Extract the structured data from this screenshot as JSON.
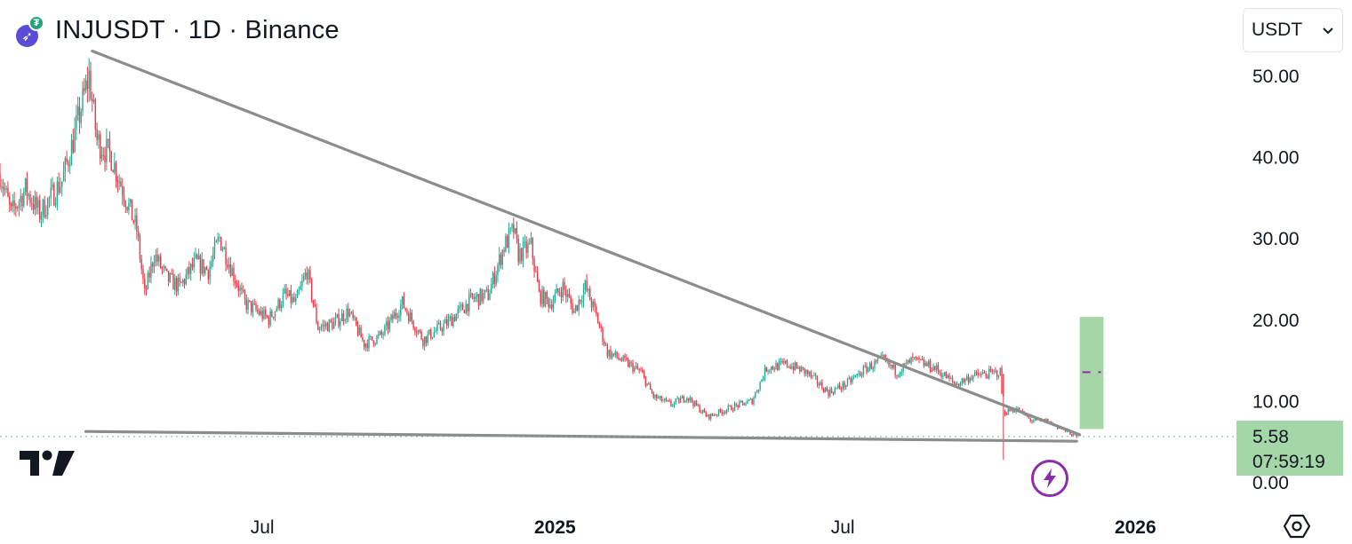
{
  "header": {
    "title": "INJUSDT · 1D · Binance",
    "base_icon": "inj-logo-icon",
    "quote_icon": "usdt-logo-icon"
  },
  "currency_selector": {
    "value": "USDT",
    "icon": "chevron-down-icon"
  },
  "price_label": {
    "price": "5.58",
    "countdown": "07:59:19",
    "color": "#a5d6a7"
  },
  "colors": {
    "up": "#22ab94",
    "down": "#f23645",
    "trendline": "#8c8c8c",
    "position_box": "#a5d6a7",
    "mid_marker": "#9c27b0"
  },
  "chart_data": {
    "type": "candlestick",
    "symbol": "INJUSDT",
    "interval": "1D",
    "exchange": "Binance",
    "y_ticks": [
      "0.00",
      "10.00",
      "20.00",
      "30.00",
      "40.00",
      "50.00"
    ],
    "ylim": [
      0,
      59
    ],
    "x_ticks": [
      {
        "label": "Jul",
        "date": "2024-07-01",
        "bold": false
      },
      {
        "label": "2025",
        "date": "2025-01-01",
        "bold": true
      },
      {
        "label": "Jul",
        "date": "2025-07-01",
        "bold": false
      },
      {
        "label": "2026",
        "date": "2026-01-01",
        "bold": true
      }
    ],
    "xlim": [
      "2024-01-18",
      "2026-03-05"
    ],
    "price_anchors": [
      [
        "2024-01-18",
        38
      ],
      [
        "2024-01-25",
        33
      ],
      [
        "2024-02-03",
        36
      ],
      [
        "2024-02-12",
        33
      ],
      [
        "2024-02-26",
        37
      ],
      [
        "2024-03-04",
        42
      ],
      [
        "2024-03-14",
        50
      ],
      [
        "2024-03-19",
        42
      ],
      [
        "2024-03-28",
        40
      ],
      [
        "2024-04-06",
        35
      ],
      [
        "2024-04-13",
        31
      ],
      [
        "2024-04-18",
        23
      ],
      [
        "2024-04-24",
        28
      ],
      [
        "2024-05-02",
        25
      ],
      [
        "2024-05-10",
        24
      ],
      [
        "2024-05-20",
        27
      ],
      [
        "2024-05-28",
        26
      ],
      [
        "2024-06-04",
        30
      ],
      [
        "2024-06-12",
        26
      ],
      [
        "2024-06-20",
        22
      ],
      [
        "2024-07-05",
        20
      ],
      [
        "2024-07-15",
        23
      ],
      [
        "2024-07-22",
        22
      ],
      [
        "2024-07-29",
        26
      ],
      [
        "2024-08-05",
        19
      ],
      [
        "2024-08-15",
        19.5
      ],
      [
        "2024-08-24",
        21
      ],
      [
        "2024-09-03",
        17
      ],
      [
        "2024-09-14",
        18
      ],
      [
        "2024-09-27",
        22
      ],
      [
        "2024-10-10",
        17.5
      ],
      [
        "2024-10-25",
        19.5
      ],
      [
        "2024-11-10",
        22.5
      ],
      [
        "2024-11-20",
        23
      ],
      [
        "2024-11-30",
        29
      ],
      [
        "2024-12-06",
        31
      ],
      [
        "2024-12-09",
        28
      ],
      [
        "2024-12-17",
        29
      ],
      [
        "2024-12-22",
        23
      ],
      [
        "2024-12-29",
        22
      ],
      [
        "2025-01-06",
        24
      ],
      [
        "2025-01-13",
        21
      ],
      [
        "2025-01-20",
        24
      ],
      [
        "2025-01-26",
        21
      ],
      [
        "2025-02-03",
        16
      ],
      [
        "2025-02-12",
        15
      ],
      [
        "2025-02-24",
        13.5
      ],
      [
        "2025-03-04",
        10.5
      ],
      [
        "2025-03-15",
        9.5
      ],
      [
        "2025-03-25",
        10.5
      ],
      [
        "2025-04-07",
        8
      ],
      [
        "2025-04-20",
        9
      ],
      [
        "2025-05-05",
        10
      ],
      [
        "2025-05-14",
        14
      ],
      [
        "2025-05-27",
        14.5
      ],
      [
        "2025-06-08",
        13.5
      ],
      [
        "2025-06-22",
        11
      ],
      [
        "2025-07-03",
        12
      ],
      [
        "2025-07-16",
        14
      ],
      [
        "2025-07-26",
        15
      ],
      [
        "2025-08-04",
        13.5
      ],
      [
        "2025-08-14",
        15
      ],
      [
        "2025-08-28",
        14
      ],
      [
        "2025-09-10",
        12
      ],
      [
        "2025-09-20",
        13
      ],
      [
        "2025-10-08",
        13.5
      ],
      [
        "2025-10-10",
        8.5
      ],
      [
        "2025-10-18",
        9
      ],
      [
        "2025-10-28",
        7.5
      ],
      [
        "2025-11-06",
        7.5
      ],
      [
        "2025-11-16",
        6.5
      ],
      [
        "2025-11-25",
        5.58
      ]
    ],
    "flash_crash": {
      "date": "2025-10-10",
      "low": 2.7
    },
    "trendlines": [
      {
        "from": [
          "2024-03-16",
          53
        ],
        "to": [
          "2025-11-27",
          5.8
        ]
      },
      {
        "from": [
          "2024-03-12",
          6.2
        ],
        "to": [
          "2025-11-25",
          5.0
        ]
      }
    ],
    "position_box": {
      "from": "2025-11-27",
      "to": "2025-12-12",
      "top": 20.3,
      "bottom": 6.5,
      "mid": 13.5
    },
    "last_price": 5.58,
    "grid": false,
    "legend": "none"
  }
}
